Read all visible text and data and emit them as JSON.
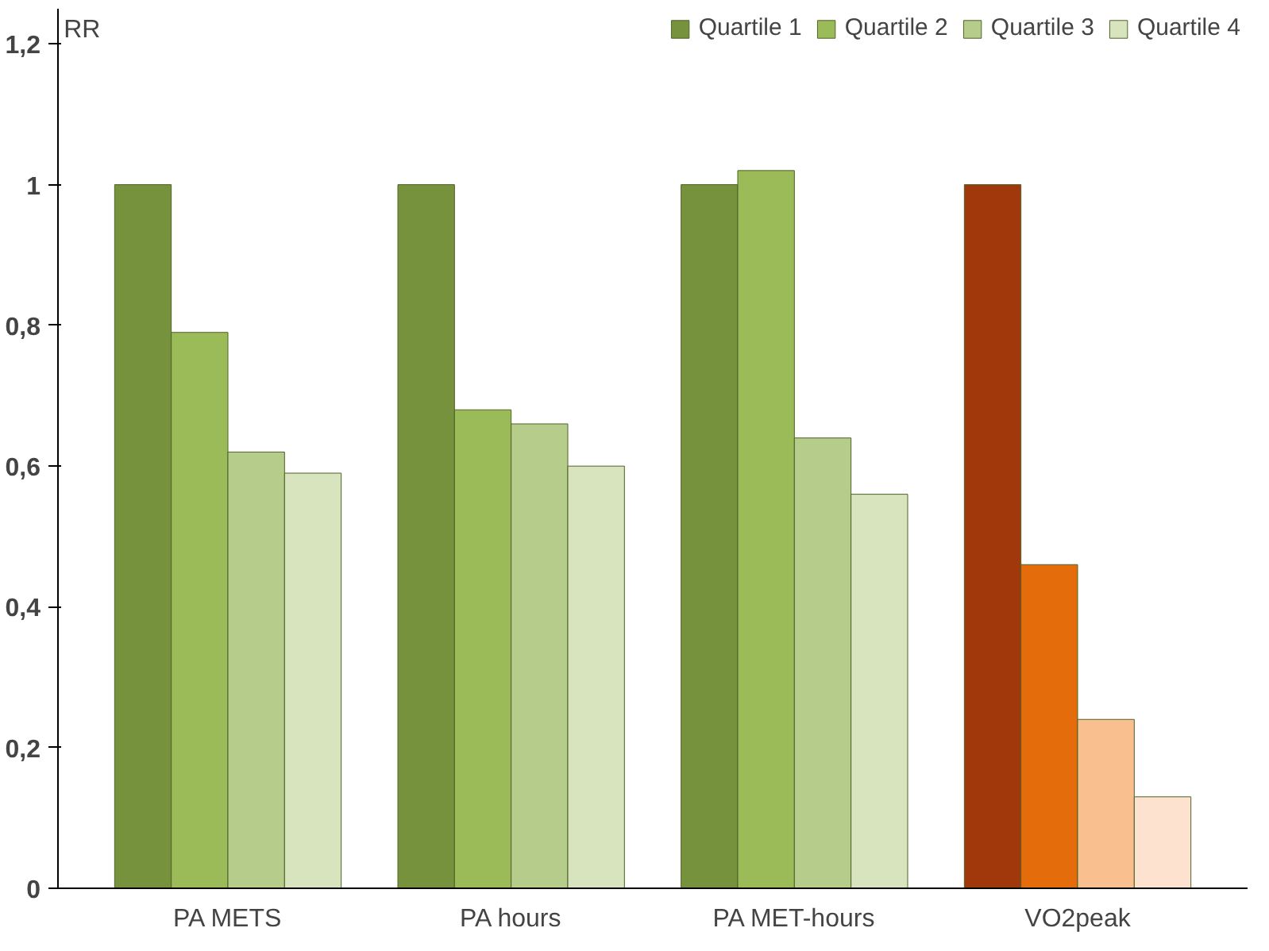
{
  "chart_data": {
    "type": "bar",
    "ylabel": "RR",
    "categories": [
      "PA METS",
      "PA hours",
      "PA MET-hours",
      "VO2peak"
    ],
    "series": [
      {
        "name": "Quartile 1",
        "colors": [
          "#76923c",
          "#76923c",
          "#76923c",
          "#a0380c"
        ],
        "values": [
          1,
          1,
          1,
          1
        ]
      },
      {
        "name": "Quartile 2",
        "colors": [
          "#9bbb59",
          "#9bbb59",
          "#9bbb59",
          "#e46c0a"
        ],
        "values": [
          0.79,
          0.68,
          1.02,
          0.46
        ]
      },
      {
        "name": "Quartile 3",
        "colors": [
          "#b5cc8a",
          "#b5cc8a",
          "#b5cc8a",
          "#fabf8f"
        ],
        "values": [
          0.62,
          0.66,
          0.64,
          0.24
        ]
      },
      {
        "name": "Quartile 4",
        "colors": [
          "#d7e4bd",
          "#d7e4bd",
          "#d7e4bd",
          "#fde3cf"
        ],
        "values": [
          0.59,
          0.6,
          0.56,
          0.13
        ]
      }
    ],
    "ylim": [
      0,
      1.25
    ],
    "yticks": [
      {
        "value": 0,
        "label": "0"
      },
      {
        "value": 0.2,
        "label": "0,2"
      },
      {
        "value": 0.4,
        "label": "0,4"
      },
      {
        "value": 0.6,
        "label": "0,6"
      },
      {
        "value": 0.8,
        "label": "0,8"
      },
      {
        "value": 1,
        "label": "1"
      },
      {
        "value": 1.2,
        "label": "1,2"
      }
    ],
    "grid": false,
    "legend": "top right"
  }
}
